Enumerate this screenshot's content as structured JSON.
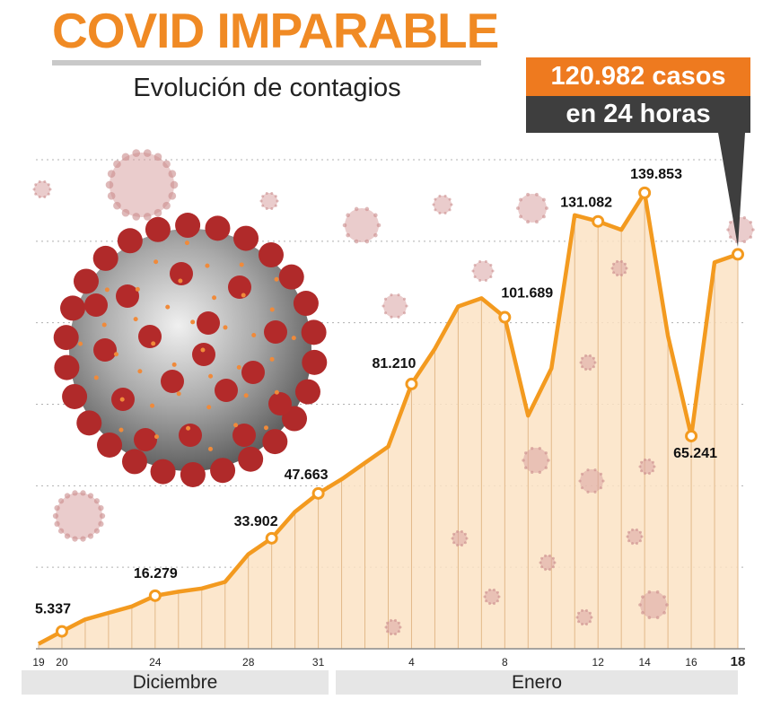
{
  "header": {
    "title": "COVID IMPARABLE",
    "subtitle": "Evolución de contagios"
  },
  "callout": {
    "line1": "120.982 casos",
    "line2": "en 24 horas"
  },
  "months": [
    {
      "label": "Diciembre"
    },
    {
      "label": "Enero"
    }
  ],
  "colors": {
    "accent": "#f39a1f",
    "fill": "#fbe3c4",
    "callout_top": "#ee7a1f",
    "callout_bottom": "#3e3e3e",
    "virus": "#b02a2a"
  },
  "chart_data": {
    "type": "area",
    "title": "Evolución de contagios",
    "x_unit": "day",
    "x_labels": [
      "19",
      "20",
      "24",
      "28",
      "31",
      "4",
      "8",
      "12",
      "14",
      "16",
      "18"
    ],
    "ylim": [
      0,
      150000
    ],
    "grid": true,
    "series": [
      {
        "values": [
          {
            "x": 0,
            "y": 1500
          },
          {
            "x": 1,
            "y": 5337
          },
          {
            "x": 2,
            "y": 9000
          },
          {
            "x": 3,
            "y": 11000
          },
          {
            "x": 4,
            "y": 13000
          },
          {
            "x": 5,
            "y": 16279
          },
          {
            "x": 6,
            "y": 17500
          },
          {
            "x": 7,
            "y": 18500
          },
          {
            "x": 8,
            "y": 20500
          },
          {
            "x": 9,
            "y": 29000
          },
          {
            "x": 10,
            "y": 33902
          },
          {
            "x": 11,
            "y": 42000
          },
          {
            "x": 12,
            "y": 47663
          },
          {
            "x": 13,
            "y": 52000
          },
          {
            "x": 14,
            "y": 57000
          },
          {
            "x": 15,
            "y": 62000
          },
          {
            "x": 16,
            "y": 81210
          },
          {
            "x": 17,
            "y": 92000
          },
          {
            "x": 18,
            "y": 105000
          },
          {
            "x": 19,
            "y": 107500
          },
          {
            "x": 20,
            "y": 101689
          },
          {
            "x": 21,
            "y": 71500
          },
          {
            "x": 22,
            "y": 86000
          },
          {
            "x": 23,
            "y": 133000
          },
          {
            "x": 24,
            "y": 131082
          },
          {
            "x": 25,
            "y": 128500
          },
          {
            "x": 26,
            "y": 139853
          },
          {
            "x": 27,
            "y": 96000
          },
          {
            "x": 28,
            "y": 65241
          },
          {
            "x": 29,
            "y": 118500
          },
          {
            "x": 30,
            "y": 120982
          }
        ]
      }
    ],
    "data_labels": [
      {
        "x": 1,
        "text": "5.337"
      },
      {
        "x": 5,
        "text": "16.279"
      },
      {
        "x": 10,
        "text": "33.902"
      },
      {
        "x": 12,
        "text": "47.663"
      },
      {
        "x": 16,
        "text": "81.210"
      },
      {
        "x": 20,
        "text": "101.689"
      },
      {
        "x": 24,
        "text": "131.082"
      },
      {
        "x": 26,
        "text": "139.853"
      },
      {
        "x": 28,
        "text": "65.241"
      }
    ],
    "ticks": [
      {
        "x": 0,
        "text": "19"
      },
      {
        "x": 1,
        "text": "20"
      },
      {
        "x": 5,
        "text": "24"
      },
      {
        "x": 9,
        "text": "28"
      },
      {
        "x": 12,
        "text": "31"
      },
      {
        "x": 16,
        "text": "4"
      },
      {
        "x": 20,
        "text": "8"
      },
      {
        "x": 24,
        "text": "12"
      },
      {
        "x": 26,
        "text": "14"
      },
      {
        "x": 28,
        "text": "16"
      },
      {
        "x": 30,
        "text": "18"
      }
    ],
    "annotation": {
      "x": 30,
      "text": "120.982 casos en 24 horas"
    }
  }
}
